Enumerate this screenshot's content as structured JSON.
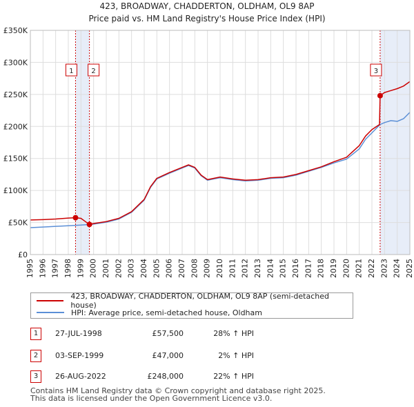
{
  "header": {
    "title": "423, BROADWAY, CHADDERTON, OLDHAM, OL9 8AP",
    "subtitle": "Price paid vs. HM Land Registry's House Price Index (HPI)"
  },
  "chart_data": {
    "type": "line",
    "title": "423, BROADWAY, CHADDERTON, OLDHAM, OL9 8AP",
    "subtitle": "Price paid vs. HM Land Registry's House Price Index (HPI)",
    "xlabel": "",
    "ylabel": "",
    "xlim": [
      1995,
      2025
    ],
    "ylim": [
      0,
      350000
    ],
    "x_ticks": [
      1995,
      1996,
      1997,
      1998,
      1999,
      2000,
      2001,
      2002,
      2003,
      2004,
      2005,
      2006,
      2007,
      2008,
      2009,
      2010,
      2011,
      2012,
      2013,
      2014,
      2015,
      2016,
      2017,
      2018,
      2019,
      2020,
      2021,
      2022,
      2023,
      2024,
      2025
    ],
    "y_ticks": [
      {
        "value": 0,
        "label": "£0"
      },
      {
        "value": 50000,
        "label": "£50K"
      },
      {
        "value": 100000,
        "label": "£100K"
      },
      {
        "value": 150000,
        "label": "£150K"
      },
      {
        "value": 200000,
        "label": "£200K"
      },
      {
        "value": 250000,
        "label": "£250K"
      },
      {
        "value": 300000,
        "label": "£300K"
      },
      {
        "value": 350000,
        "label": "£350K"
      }
    ],
    "grid": true,
    "shaded_periods": [
      [
        1998.57,
        1999.67
      ],
      [
        2022.65,
        2025
      ]
    ],
    "series": [
      {
        "name": "423, BROADWAY, CHADDERTON, OLDHAM, OL9 8AP (semi-detached house)",
        "color": "#cc0000",
        "x": [
          1995,
          1996,
          1997,
          1998,
          1998.57,
          1999,
          1999.67,
          2000,
          2001,
          2002,
          2003,
          2004,
          2004.5,
          2005,
          2006,
          2007,
          2007.5,
          2008,
          2008.5,
          2009,
          2009.5,
          2010,
          2011,
          2012,
          2013,
          2014,
          2015,
          2016,
          2017,
          2018,
          2019,
          2020,
          2021,
          2021.5,
          2022,
          2022.6,
          2022.65,
          2023,
          2023.5,
          2024,
          2024.5,
          2025
        ],
        "y": [
          54000,
          54500,
          55500,
          57000,
          57500,
          56500,
          47000,
          48500,
          51500,
          56500,
          67000,
          86000,
          106000,
          119000,
          128000,
          136000,
          140000,
          136000,
          124000,
          117000,
          119000,
          121000,
          118000,
          116000,
          117000,
          120000,
          121000,
          125000,
          131000,
          137000,
          145000,
          152000,
          170000,
          185000,
          195000,
          203000,
          248000,
          253000,
          256000,
          259000,
          263000,
          270000
        ]
      },
      {
        "name": "HPI: Average price, semi-detached house, Oldham",
        "color": "#5b8fd6",
        "x": [
          1995,
          1996,
          1997,
          1998,
          1999,
          2000,
          2001,
          2002,
          2003,
          2004,
          2004.5,
          2005,
          2006,
          2007,
          2007.5,
          2008,
          2008.5,
          2009,
          2009.5,
          2010,
          2011,
          2012,
          2013,
          2014,
          2015,
          2016,
          2017,
          2018,
          2019,
          2020,
          2021,
          2021.5,
          2022,
          2022.65,
          2023,
          2023.5,
          2024,
          2024.5,
          2025
        ],
        "y": [
          42000,
          43000,
          44000,
          45000,
          46000,
          47500,
          50500,
          55500,
          66000,
          85000,
          105000,
          118000,
          127000,
          135000,
          139000,
          135000,
          123000,
          116000,
          118000,
          120000,
          117000,
          115000,
          116000,
          119000,
          120000,
          124000,
          130000,
          136000,
          143000,
          149000,
          165000,
          180000,
          190000,
          203000,
          206000,
          209000,
          208000,
          212000,
          222000
        ]
      }
    ],
    "markers": [
      {
        "label": "1",
        "x": 1998.57,
        "y": 57500
      },
      {
        "label": "2",
        "x": 1999.67,
        "y": 47000
      },
      {
        "label": "3",
        "x": 2022.65,
        "y": 248000
      }
    ]
  },
  "legend": {
    "items": [
      {
        "label": "423, BROADWAY, CHADDERTON, OLDHAM, OL9 8AP (semi-detached house)",
        "color": "#cc0000"
      },
      {
        "label": "HPI: Average price, semi-detached house, Oldham",
        "color": "#5b8fd6"
      }
    ]
  },
  "transactions": [
    {
      "num": "1",
      "date": "27-JUL-1998",
      "price": "£57,500",
      "hpi": "28% ↑ HPI"
    },
    {
      "num": "2",
      "date": "03-SEP-1999",
      "price": "£47,000",
      "hpi": "2% ↑ HPI"
    },
    {
      "num": "3",
      "date": "26-AUG-2022",
      "price": "£248,000",
      "hpi": "22% ↑ HPI"
    }
  ],
  "footer": {
    "line1": "Contains HM Land Registry data © Crown copyright and database right 2025.",
    "line2": "This data is licensed under the Open Government Licence v3.0."
  }
}
